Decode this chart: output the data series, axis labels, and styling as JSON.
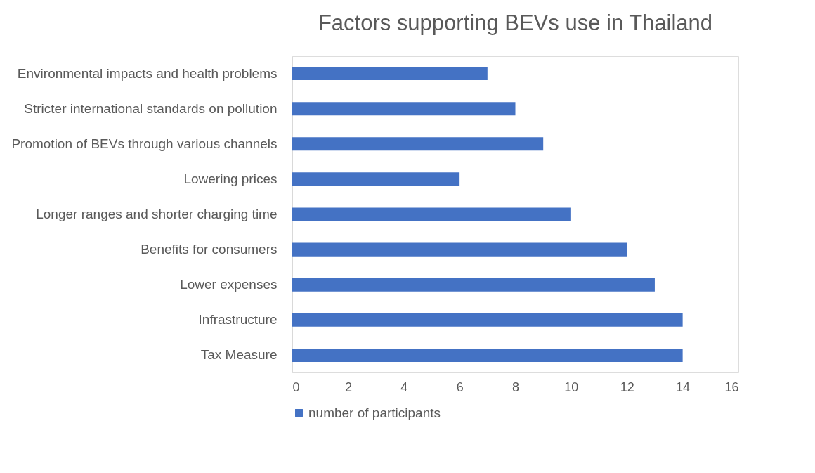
{
  "chart_data": {
    "type": "bar",
    "orientation": "horizontal",
    "title": "Factors supporting BEVs use in Thailand",
    "categories": [
      "Environmental impacts and health problems",
      "Stricter international standards on pollution",
      "Promotion of BEVs through various channels",
      "Lowering prices",
      "Longer ranges and shorter charging time",
      "Benefits for consumers",
      "Lower expenses",
      "Infrastructure",
      "Tax Measure"
    ],
    "series": [
      {
        "name": "number of participants",
        "color": "#4472c4",
        "values": [
          7,
          8,
          9,
          6,
          10,
          12,
          13,
          14,
          14
        ]
      }
    ],
    "xlim": [
      0,
      16
    ],
    "xticks": [
      0,
      2,
      4,
      6,
      8,
      10,
      12,
      14,
      16
    ],
    "grid": false,
    "legend": "bottom"
  }
}
